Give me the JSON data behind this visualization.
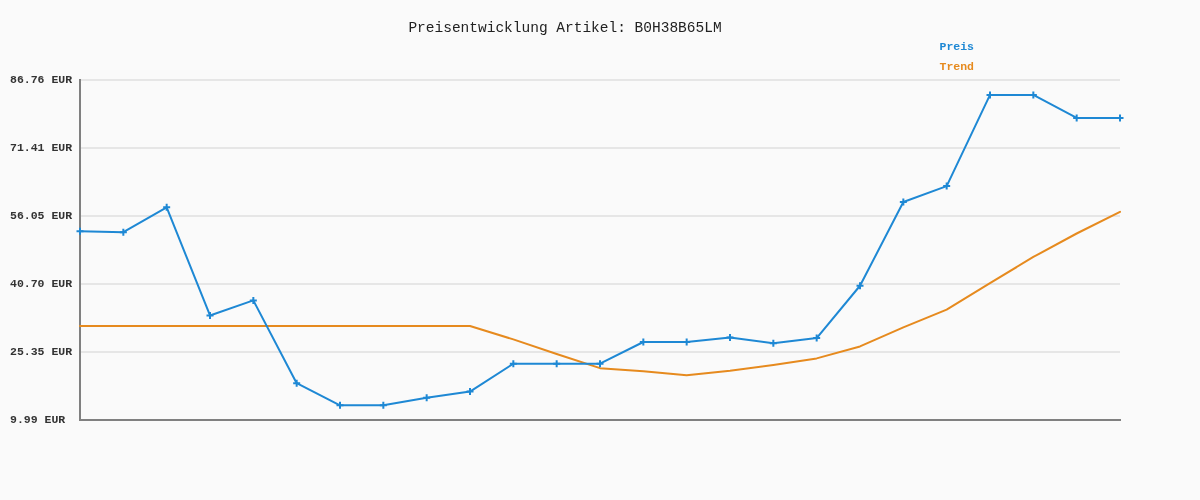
{
  "chart_data": {
    "type": "line",
    "title": "Preisentwicklung Artikel: B0H38B65LM",
    "categories": [
      null,
      null,
      null,
      null,
      null,
      null,
      null,
      null,
      null,
      null,
      null,
      null,
      null,
      null,
      null,
      null,
      null,
      null,
      null,
      null,
      null,
      null,
      null,
      null,
      null
    ],
    "series": [
      {
        "name": "Preis",
        "color": "#1e88d4",
        "marker": "cross",
        "values": [
          52.6,
          52.4,
          58.0,
          33.6,
          37.0,
          18.3,
          13.3,
          13.3,
          15.0,
          16.4,
          22.7,
          22.7,
          22.7,
          27.6,
          27.6,
          28.6,
          27.3,
          28.5,
          40.3,
          59.2,
          62.8,
          83.4,
          83.4,
          78.2,
          78.2
        ]
      },
      {
        "name": "Trend",
        "color": "#e68a1e",
        "marker": "none",
        "values": [
          31.2,
          31.2,
          31.2,
          31.2,
          31.2,
          31.2,
          31.2,
          31.2,
          31.2,
          31.2,
          28.2,
          24.9,
          21.7,
          21.0,
          20.1,
          21.1,
          22.4,
          23.9,
          26.6,
          30.9,
          34.9,
          40.9,
          46.8,
          52.1,
          57.0
        ]
      }
    ],
    "ylim": [
      9.99,
      86.76
    ],
    "yticks": [
      {
        "value": 9.99,
        "label": "9.99 EUR"
      },
      {
        "value": 25.35,
        "label": "25.35 EUR"
      },
      {
        "value": 40.7,
        "label": "40.70 EUR"
      },
      {
        "value": 56.05,
        "label": "56.05 EUR"
      },
      {
        "value": 71.41,
        "label": "71.41 EUR"
      },
      {
        "value": 86.76,
        "label": "86.76 EUR"
      }
    ],
    "grid": "y",
    "legend": "top right",
    "tick_labels": "y"
  }
}
